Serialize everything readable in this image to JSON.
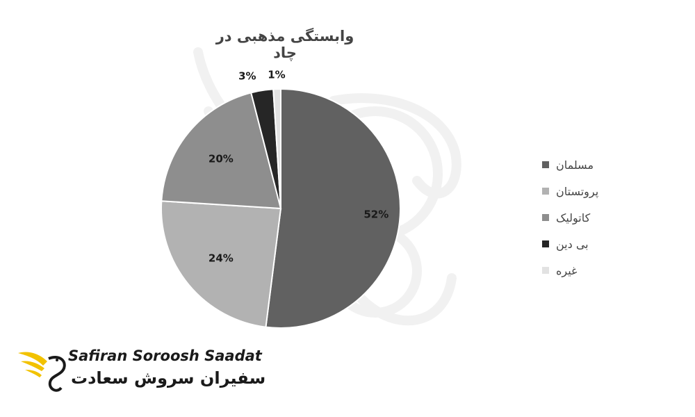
{
  "chart_data": {
    "type": "pie",
    "title": "وابستگی مذهبی در چاد",
    "slices": [
      {
        "label": "مسلمان",
        "value": 52,
        "display": "52%",
        "color": "#616161"
      },
      {
        "label": "پروتستان",
        "value": 24,
        "display": "24%",
        "color": "#b2b2b2"
      },
      {
        "label": "کاتولیک",
        "value": 20,
        "display": "20%",
        "color": "#8e8e8e"
      },
      {
        "label": "بی دین",
        "value": 3,
        "display": "3%",
        "color": "#262626"
      },
      {
        "label": "غیره",
        "value": 1,
        "display": "1%",
        "color": "#e2e2e2"
      }
    ],
    "legend_position": "right"
  },
  "logo": {
    "name_en": "Safiran Soroosh Saadat",
    "name_fa": "سفیران سروش سعادت"
  }
}
